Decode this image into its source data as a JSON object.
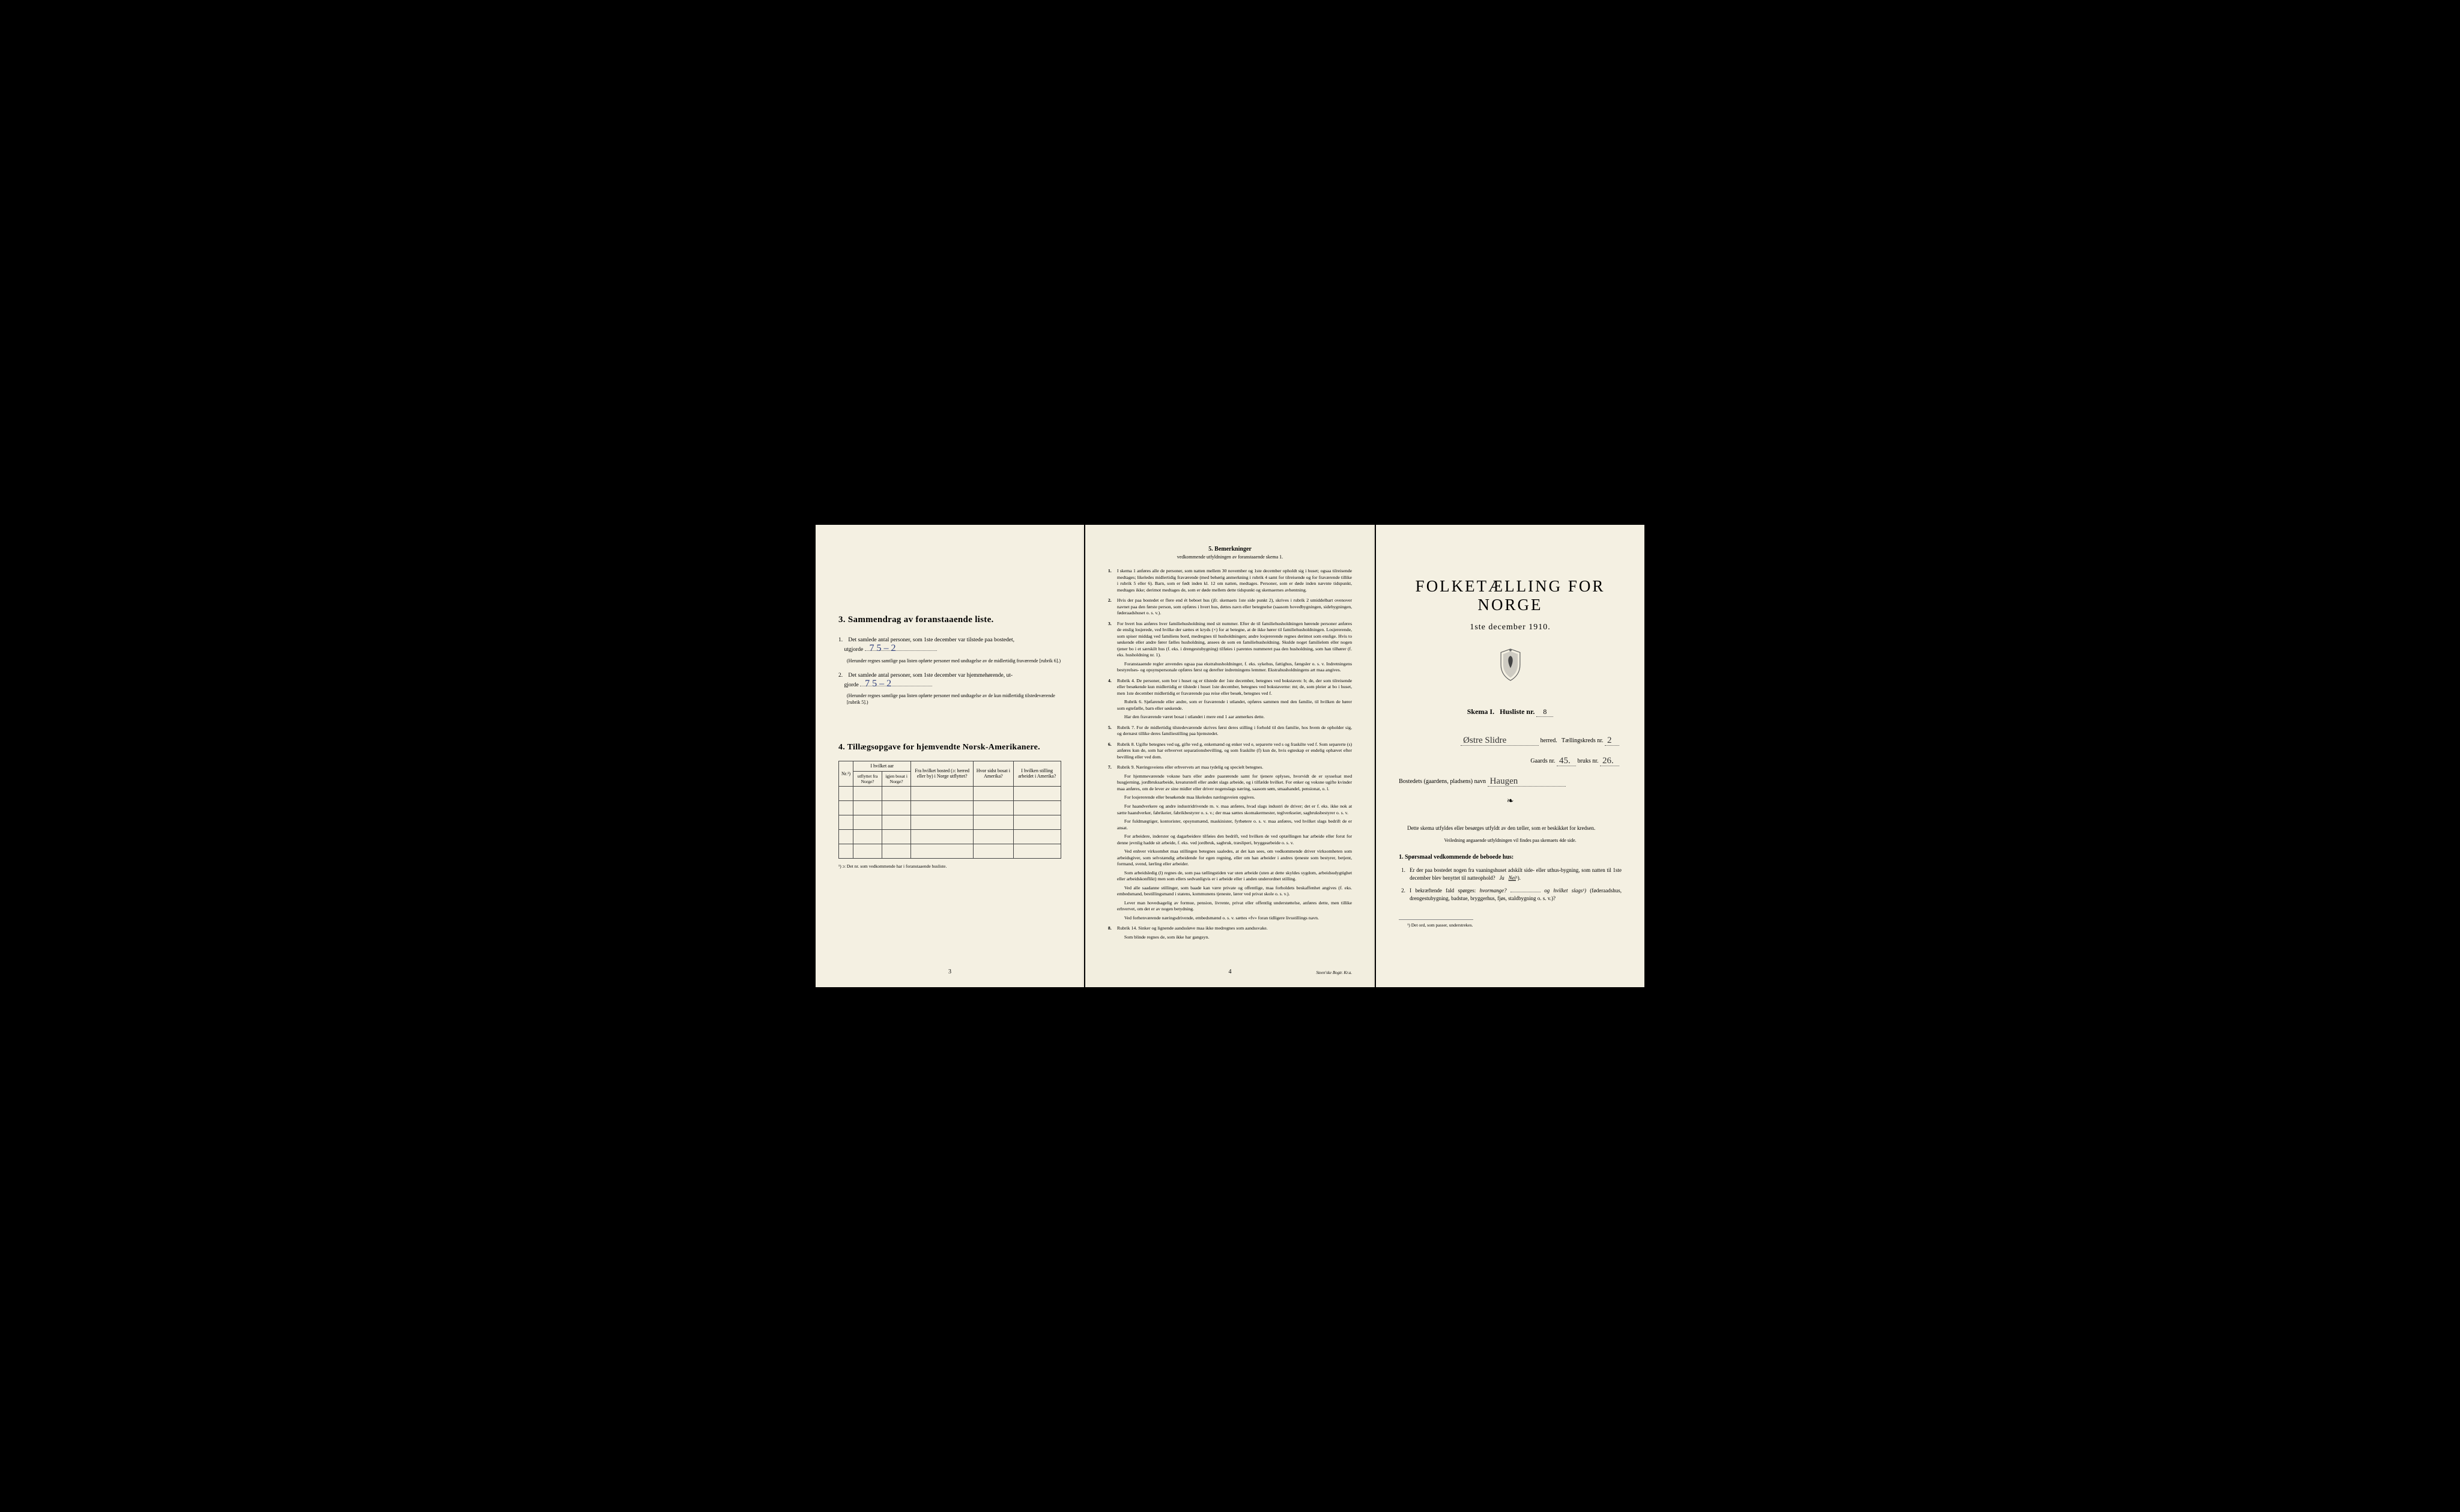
{
  "colors": {
    "page_bg": "#f4f0e2",
    "page2_bg": "#f2eedf",
    "outer_bg": "#000000",
    "text": "#1a1a1a",
    "handwriting": "#2a3a7a",
    "border": "#444444"
  },
  "page1": {
    "section3": {
      "heading": "3.   Sammendrag av foranstaaende liste.",
      "item1": {
        "num": "1.",
        "text_a": "Det samlede antal personer, som 1ste december var tilstede paa bostedet,",
        "text_b": "utgjorde",
        "value": "7    5 – 2",
        "note": "(Herunder regnes samtlige paa listen opførte personer med undtagelse av de midlertidig fraværende [rubrik 6].)"
      },
      "item2": {
        "num": "2.",
        "text_a": "Det samlede antal personer, som 1ste december var hjemmehørende, ut-",
        "text_b": "gjorde",
        "value": "7    5 – 2",
        "note": "(Herunder regnes samtlige paa listen opførte personer med undtagelse av de kun midlertidig tilstedeværende [rubrik 5].)"
      }
    },
    "section4": {
      "heading": "4.   Tillægsopgave for hjemvendte Norsk-Amerikanere.",
      "table": {
        "col_nr": "Nr.¹)",
        "col_year_group": "I hvilket aar",
        "col_year_out": "utflyttet fra Norge?",
        "col_year_back": "igjen bosat i Norge?",
        "col_from": "Fra hvilket bosted (ɔ: herred eller by) i Norge utflyttet?",
        "col_where": "Hvor sidst bosat i Amerika?",
        "col_job": "I hvilken stilling arbeidet i Amerika?",
        "rows": 5
      },
      "table_note": "¹) ɔ: Det nr. som vedkommende har i foranstaaende husliste."
    },
    "page_num": "3"
  },
  "page2": {
    "heading": "5.   Bemerkninger",
    "subheading": "vedkommende utfyldningen av foranstaaende skema 1.",
    "remarks": [
      {
        "n": "1.",
        "text": "I skema 1 anføres alle de personer, som natten mellem 30 november og 1ste december opholdt sig i huset; ogsaa tilreisende medtages; likeledes midlertidig fraværende (med behørig anmerkning i rubrik 4 samt for tilreisende og for fraværende tillike i rubrik 5 eller 6). Barn, som er født inden kl. 12 om natten, medtages. Personer, som er døde inden nævnte tidspunkt, medtages ikke; derimot medtages de, som er døde mellem dette tidspunkt og skemaernes avhentning."
      },
      {
        "n": "2.",
        "text": "Hvis der paa bostedet er flere end ét beboet hus (jfr. skemaets 1ste side punkt 2), skrives i rubrik 2 umiddelbart ovenover navnet paa den første person, som opføres i hvert hus, dettes navn eller betegnelse (saasom hovedbygningen, sidebygningen, føderaadshuset o. s. v.)."
      },
      {
        "n": "3.",
        "text": "For hvert hus anføres hver familiehusholdning med sit nummer. Efter de til familiehusholdningen hørende personer anføres de enslig losjerede, ved hvilke der sættes et kryds (×) for at betegne, at de ikke hører til familiehusholdningen. Losjererende, som spiser middag ved familiens bord, medregnes til husholdningen; andre losjererende regnes derimot som enslige. Hvis to søskende eller andre fører fælles husholdning, ansees de som en familiehusholdning. Skulde noget familielem eller nogen tjener bo i et særskilt hus (f. eks. i drengestubygning) tilføies i parentes nummeret paa den husholdning, som han tilhører (f. eks. husholdning nr. 1).",
        "para2": "Foranstaaende regler anvendes ogsaa paa ekstrahusholdninger, f. eks. sykehus, fattighus, fængsler o. s. v. Indretningens bestyrelses- og opsynspersonale opføres først og derefter indretningens lemmer. Ekstrahusholdningens art maa angives."
      },
      {
        "n": "4.",
        "text": "Rubrik 4. De personer, som bor i huset og er tilstede der 1ste december, betegnes ved bokstaven: b; de, der som tilreisende eller besøkende kun midlertidig er tilstede i huset 1ste december, betegnes ved bokstaverne: mt; de, som pleier at bo i huset, men 1ste december midlertidig er fraværende paa reise eller besøk, betegnes ved f.",
        "para2": "Rubrik 6. Sjøfarende eller andre, som er fraværende i utlandet, opføres sammen med den familie, til hvilken de hører som egtefælle, barn eller søskende.",
        "para3": "Har den fraværende været bosat i utlandet i mere end 1 aar anmerkes dette."
      },
      {
        "n": "5.",
        "text": "Rubrik 7. For de midlertidig tilstedeværende skrives først deres stilling i forhold til den familie, hos hvem de opholder sig, og dernæst tillike deres familiestilling paa hjemstedet."
      },
      {
        "n": "6.",
        "text": "Rubrik 8. Ugifte betegnes ved ug, gifte ved g, enkemænd og enker ved e, separerte ved s og fraskilte ved f. Som separerte (s) anføres kun de, som har erhvervet separationsbevilling, og som fraskilte (f) kun de, hvis egteskap er endelig ophævet efter bevilling eller ved dom."
      },
      {
        "n": "7.",
        "text": "Rubrik 9. Næringsveiens eller erhvervets art maa tydelig og specielt betegnes.",
        "para2": "For hjemmeværende voksne barn eller andre paarørende samt for tjenere oplyses, hvorvidt de er sysselsat med husgjerning, jordbruksarbeide, kreaturstell eller andet slags arbeide, og i tilfælde hvilket. For enker og voksne ugifte kvinder maa anføres, om de lever av sine midler eller driver nogenslags næring, saasom søm, smaahandel, pensionat, o. l.",
        "para3": "For losjererende eller besøkende maa likeledes næringsveien opgives.",
        "para4": "For haandverkere og andre industridrivende m. v. maa anføres, hvad slags industri de driver; det er f. eks. ikke nok at sætte haandverker, fabrikeier, fabrikbestyrer o. s. v.; der maa sættes skomakermester, teglverkseier, sagbruksbestyrer o. s. v.",
        "para5": "For fuldmægtiger, kontorister, opsynsmænd, maskinister, fyrbøtere o. s. v. maa anføres, ved hvilket slags bedrift de er ansat.",
        "para6": "For arbeidere, inderster og dagarbeidere tilføies den bedrift, ved hvilken de ved optællingen har arbeide eller forut for denne jevnlig hadde sit arbeide, f. eks. ved jordbruk, sagbruk, træsliperi, bryggearbeide o. s. v.",
        "para7": "Ved enhver virksomhet maa stillingen betegnes saaledes, at det kan sees, om vedkommende driver virksomheten som arbeidsgiver, som selvstændig arbeidende for egen regning, eller om han arbeider i andres tjeneste som bestyrer, betjent, formand, svend, lærling eller arbeider.",
        "para8": "Som arbeidsledig (l) regnes de, som paa tællingstiden var uten arbeide (uten at dette skyldes sygdom, arbeidsudygtighet eller arbeidskonflikt) men som ellers sedvanligvis er i arbeide eller i anden underordnet stilling.",
        "para9": "Ved alle saadanne stillinger, som baade kan være private og offentlige, maa forholdets beskaffenhet angives (f. eks. embedsmand, bestillingsmand i statens, kommunens tjeneste, lærer ved privat skole o. s. v.).",
        "para10": "Lever man hovedsagelig av formue, pension, livrente, privat eller offentlig understøttelse, anføres dette, men tillike erhvervet, om det er av nogen betydning.",
        "para11": "Ved forhenværende næringsdrivende, embedsmænd o. s. v. sættes «fv» foran tidligere livsstillings navn."
      },
      {
        "n": "8.",
        "text": "Rubrik 14. Sinker og lignende aandssløve maa ikke medregnes som aandssvake.",
        "para2": "Som blinde regnes de, som ikke har gangsyn."
      }
    ],
    "page_num": "4",
    "printer": "Steen'ske Bogtr.   Kr.a."
  },
  "page3": {
    "title": "FOLKETÆLLING FOR NORGE",
    "date": "1ste december 1910.",
    "skema": {
      "label_a": "Skema I.",
      "label_b": "Husliste nr.",
      "value": "8"
    },
    "line_herred": {
      "value": "Østre Slidre",
      "label": "herred.",
      "label2": "Tællingskreds nr.",
      "value2": "2"
    },
    "line_gaard": {
      "label_a": "Gaards nr.",
      "value_a": "45.",
      "label_b": "bruks nr.",
      "value_b": "26."
    },
    "line_navn": {
      "label": "Bostedets (gaardens, pladsens) navn",
      "value": "Haugen"
    },
    "intro1": "Dette skema utfyldes eller besørges utfyldt av den tæller, som er beskikket for kredsen.",
    "intro2": "Veiledning angaaende utfyldningen vil findes paa skemaets 4de side.",
    "q_heading": "1. Spørsmaal vedkommende de beboede hus:",
    "q1": {
      "n": "1.",
      "text": "Er der paa bostedet nogen fra vaaningshuset adskilt side- eller uthus-bygning, som natten til 1ste december blev benyttet til natteophold?",
      "ja": "Ja",
      "nei": "Nei",
      "sup": "¹)."
    },
    "q2": {
      "n": "2.",
      "text_a": "I bekræftende fald spørges:",
      "text_b": "hvormange?",
      "text_c": "og hvilket slags¹)",
      "text_d": "(føderaadshus, drengestubygning, badstue, bryggerhus, fjøs, staldbygning o. s. v.)?"
    },
    "footnote": "¹) Det ord, som passer, understrekes."
  }
}
